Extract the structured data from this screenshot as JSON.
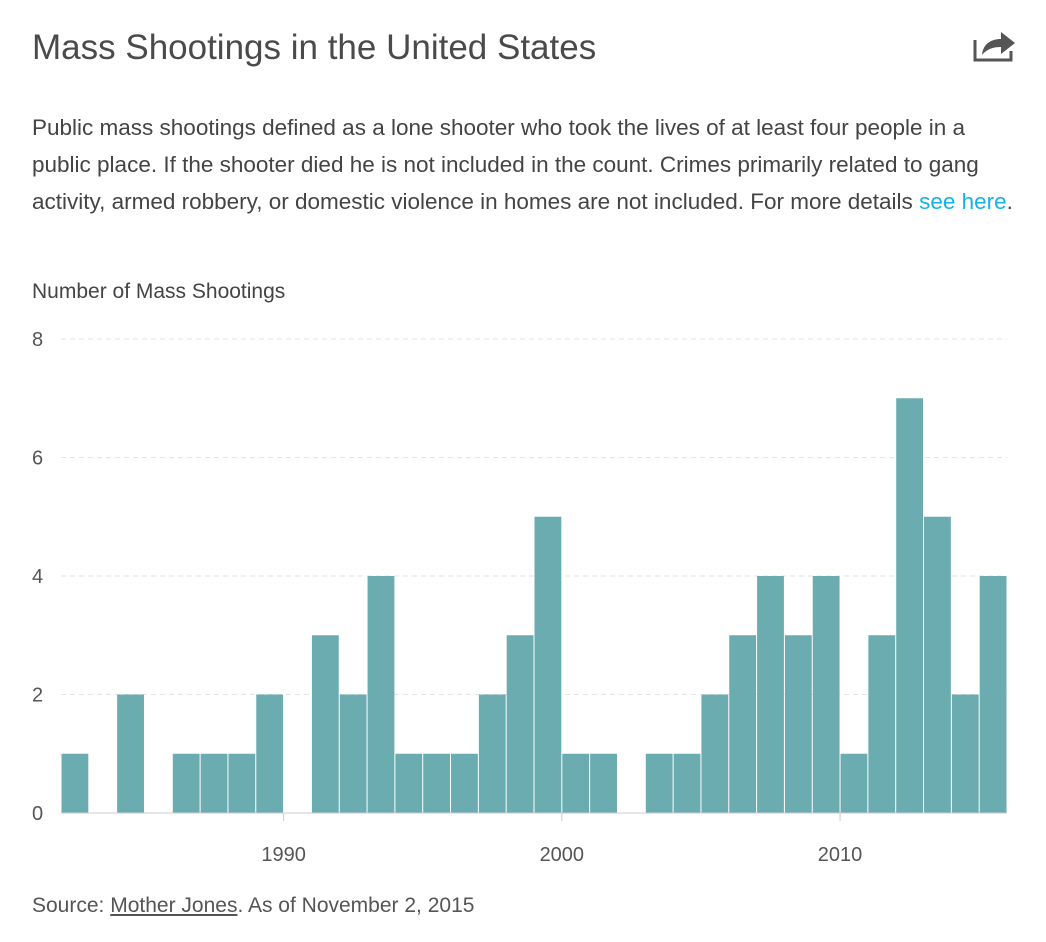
{
  "header": {
    "title": "Mass Shootings in the United States",
    "share_icon": "share-icon"
  },
  "description": {
    "text": "Public mass shootings defined as a lone shooter who took the lives of at least four people in a public place. If the shooter died he is not included in the count. Crimes primarily related to gang activity, armed robbery, or domestic violence in homes are not included. For more details ",
    "link_text": "see here",
    "suffix": "."
  },
  "source": {
    "prefix": "Source: ",
    "link_text": "Mother Jones",
    "suffix": ". As of November 2, 2015"
  },
  "colors": {
    "bar": "#6aacb0",
    "grid": "#e3e3e3",
    "axis": "#cccccc",
    "link": "#16b1e8"
  },
  "chart_data": {
    "type": "bar",
    "title": "Mass Shootings in the United States",
    "xlabel": "",
    "ylabel": "Number of Mass Shootings",
    "ylim": [
      0,
      8
    ],
    "yticks": [
      0,
      2,
      4,
      6,
      8
    ],
    "xlim": [
      1982,
      2016
    ],
    "xticks": [
      1990,
      2000,
      2010
    ],
    "grid": true,
    "categories": [
      1982,
      1983,
      1984,
      1985,
      1986,
      1987,
      1988,
      1989,
      1990,
      1991,
      1992,
      1993,
      1994,
      1995,
      1996,
      1997,
      1998,
      1999,
      2000,
      2001,
      2002,
      2003,
      2004,
      2005,
      2006,
      2007,
      2008,
      2009,
      2010,
      2011,
      2012,
      2013,
      2014,
      2015
    ],
    "values": [
      1,
      0,
      2,
      0,
      1,
      1,
      1,
      2,
      0,
      3,
      2,
      4,
      1,
      1,
      1,
      2,
      3,
      5,
      1,
      1,
      0,
      1,
      1,
      2,
      3,
      4,
      3,
      4,
      1,
      3,
      7,
      5,
      2,
      4
    ]
  }
}
